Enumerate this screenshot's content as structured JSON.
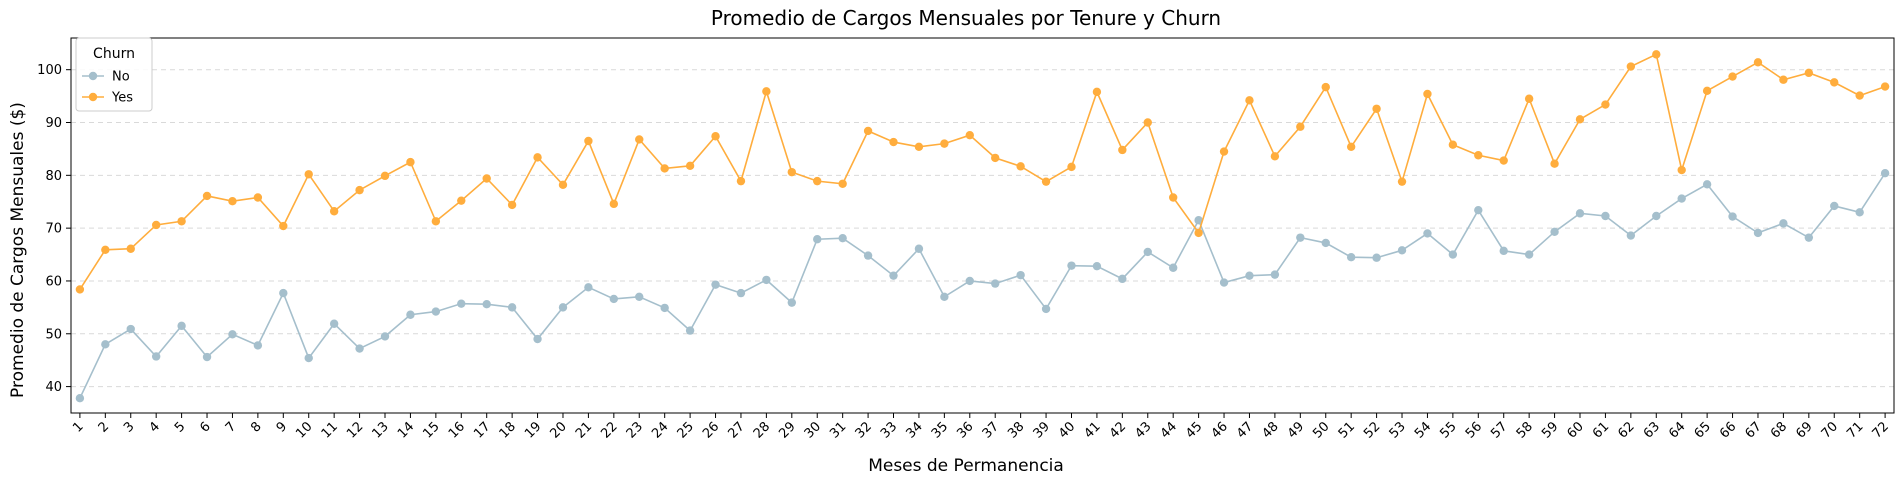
{
  "chart_data": {
    "type": "line",
    "title": "Promedio de Cargos Mensuales por Tenure y Churn",
    "xlabel": "Meses de Permanencia",
    "ylabel": "Promedio de Cargos Mensuales ($)",
    "x": [
      1,
      2,
      3,
      4,
      5,
      6,
      7,
      8,
      9,
      10,
      11,
      12,
      13,
      14,
      15,
      16,
      17,
      18,
      19,
      20,
      21,
      22,
      23,
      24,
      25,
      26,
      27,
      28,
      29,
      30,
      31,
      32,
      33,
      34,
      35,
      36,
      37,
      38,
      39,
      40,
      41,
      42,
      43,
      44,
      45,
      46,
      47,
      48,
      49,
      50,
      51,
      52,
      53,
      54,
      55,
      56,
      57,
      58,
      59,
      60,
      61,
      62,
      63,
      64,
      65,
      66,
      67,
      68,
      69,
      70,
      71,
      72
    ],
    "yticks": [
      40,
      50,
      60,
      70,
      80,
      90,
      100
    ],
    "ylim": [
      35,
      106
    ],
    "grid": "y-dashed",
    "legend": {
      "title": "Churn",
      "placement": "top-left"
    },
    "series": [
      {
        "name": "No",
        "color": "#a5bfcc",
        "values": [
          37.8,
          48.0,
          50.9,
          45.7,
          51.5,
          45.6,
          49.9,
          47.8,
          57.7,
          45.4,
          51.9,
          47.2,
          49.5,
          53.6,
          54.2,
          55.7,
          55.6,
          55.0,
          49.0,
          55.0,
          58.8,
          56.6,
          57.0,
          54.9,
          50.6,
          59.3,
          57.7,
          60.2,
          55.9,
          67.9,
          68.1,
          64.8,
          61.0,
          66.1,
          57.0,
          60.0,
          59.5,
          61.1,
          54.7,
          62.9,
          62.8,
          60.4,
          65.5,
          62.5,
          71.5,
          59.7,
          61.0,
          61.2,
          68.2,
          67.2,
          64.5,
          64.4,
          65.8,
          69.0,
          65.0,
          73.4,
          65.7,
          65.0,
          69.3,
          72.8,
          72.3,
          68.6,
          72.3,
          75.6,
          78.3,
          72.2,
          69.1,
          70.9,
          68.2,
          74.2,
          73.0,
          80.4
        ]
      },
      {
        "name": "Yes",
        "color": "#ffad3d",
        "values": [
          58.4,
          65.9,
          66.1,
          70.6,
          71.3,
          76.1,
          75.1,
          75.8,
          70.4,
          80.2,
          73.2,
          77.2,
          79.9,
          82.5,
          71.3,
          75.2,
          79.4,
          74.4,
          83.4,
          78.2,
          86.5,
          74.6,
          86.8,
          81.3,
          81.8,
          87.4,
          78.9,
          95.9,
          80.6,
          78.9,
          78.4,
          88.4,
          86.3,
          85.4,
          86.0,
          87.6,
          83.3,
          81.7,
          78.8,
          81.6,
          95.8,
          84.8,
          90.0,
          75.8,
          69.1,
          84.5,
          94.2,
          83.6,
          89.2,
          96.7,
          85.4,
          92.6,
          78.8,
          95.4,
          85.8,
          83.8,
          82.8,
          94.5,
          82.2,
          90.6,
          93.4,
          100.6,
          102.9,
          81.0,
          96.0,
          98.7,
          101.4,
          98.1,
          99.4,
          97.6,
          95.1,
          96.8
        ]
      }
    ]
  }
}
